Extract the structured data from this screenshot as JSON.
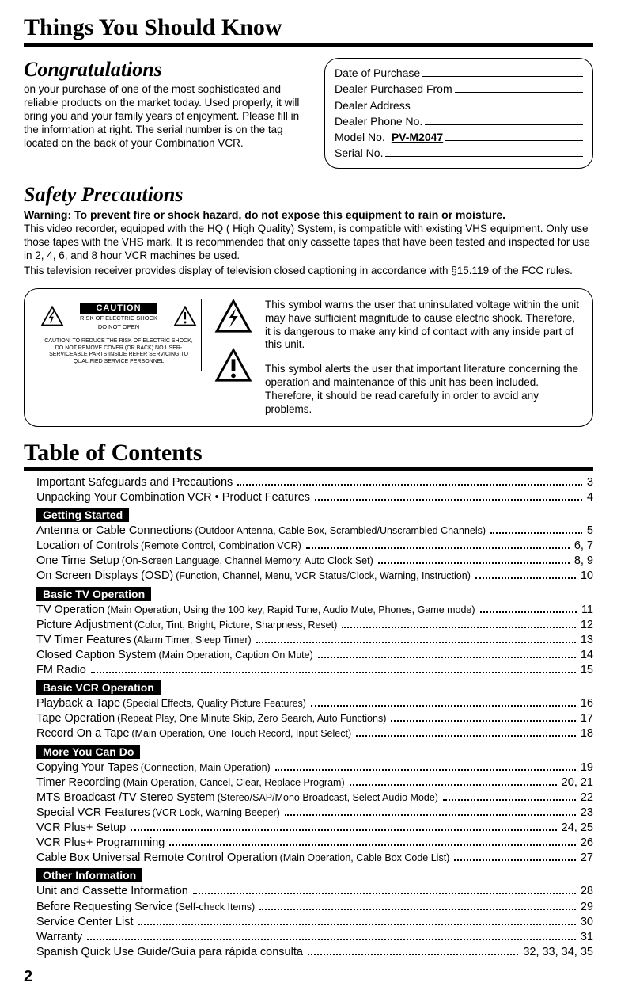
{
  "page": {
    "title": "Things You Should Know",
    "page_number": "2"
  },
  "congrats": {
    "heading": "Congratulations",
    "body": "on your purchase of one of the most sophisticated and reliable products on the market today. Used properly, it will bring you and your family years of enjoyment. Please fill in the information at right. The serial number is on the tag located on the back of your Combination VCR."
  },
  "info_box": {
    "fields": [
      {
        "label": "Date of Purchase",
        "value": ""
      },
      {
        "label": "Dealer Purchased From",
        "value": ""
      },
      {
        "label": "Dealer Address",
        "value": ""
      },
      {
        "label": "Dealer Phone No.",
        "value": ""
      },
      {
        "label": "Model No.",
        "value": "PV-M2047"
      },
      {
        "label": "Serial No.",
        "value": ""
      }
    ]
  },
  "safety": {
    "heading": "Safety Precautions",
    "warning": "Warning: To prevent fire or shock hazard, do not expose this equipment to rain or moisture.",
    "p1": "This video recorder, equipped with the HQ ( High Quality) System, is compatible with existing VHS equipment. Only use those tapes with the VHS mark. It is recommended that only cassette tapes that have been tested and inspected for use in 2, 4, 6, and 8 hour VCR machines be used.",
    "p2": "This television receiver provides display of television closed captioning in accordance with §15.119 of the FCC rules."
  },
  "caution_box": {
    "badge": "CAUTION",
    "sub1": "RISK OF ELECTRIC SHOCK",
    "sub2": "DO NOT OPEN",
    "mid": "CAUTION: TO REDUCE THE RISK OF ELECTRIC SHOCK, DO NOT REMOVE COVER (OR BACK) NO USER-SERVICEABLE PARTS INSIDE REFER SERVICING TO QUALIFIED SERVICE PERSONNEL"
  },
  "symbols": {
    "bolt": "This symbol warns the user that uninsulated voltage within the unit may have sufficient magnitude to cause electric shock. Therefore, it is dangerous to make any kind of contact with any inside part of this unit.",
    "excl": "This symbol alerts the user that important literature concerning the operation and maintenance of this unit has been included. Therefore, it should be read carefully in order to avoid any problems."
  },
  "toc": {
    "heading": "Table of Contents",
    "top": [
      {
        "title": "Important Safeguards and Precautions",
        "sub": "",
        "page": "3"
      },
      {
        "title": "Unpacking Your Combination VCR • Product Features",
        "sub": "",
        "page": "4"
      }
    ],
    "sections": [
      {
        "name": "Getting Started",
        "items": [
          {
            "title": "Antenna or Cable Connections",
            "sub": "(Outdoor Antenna, Cable Box, Scrambled/Unscrambled Channels)",
            "page": "5"
          },
          {
            "title": "Location of Controls",
            "sub": "(Remote Control, Combination VCR)",
            "page": "6, 7"
          },
          {
            "title": "One Time Setup",
            "sub": "(On-Screen Language, Channel Memory, Auto Clock Set)",
            "page": "8, 9"
          },
          {
            "title": "On Screen Displays (OSD)",
            "sub": "(Function, Channel, Menu, VCR Status/Clock, Warning, Instruction)",
            "page": "10"
          }
        ]
      },
      {
        "name": "Basic TV Operation",
        "items": [
          {
            "title": "TV Operation",
            "sub": "(Main Operation, Using the 100 key, Rapid Tune, Audio Mute, Phones, Game mode)",
            "page": "11"
          },
          {
            "title": "Picture Adjustment",
            "sub": "(Color, Tint, Bright, Picture, Sharpness, Reset)",
            "page": "12"
          },
          {
            "title": "TV Timer Features",
            "sub": "(Alarm Timer, Sleep Timer)",
            "page": "13"
          },
          {
            "title": "Closed Caption System",
            "sub": "(Main Operation, Caption On Mute)",
            "page": "14"
          },
          {
            "title": "FM Radio",
            "sub": "",
            "page": "15"
          }
        ]
      },
      {
        "name": "Basic VCR Operation",
        "items": [
          {
            "title": "Playback a Tape",
            "sub": "(Special Effects, Quality Picture Features)",
            "page": "16"
          },
          {
            "title": "Tape Operation",
            "sub": "(Repeat Play, One Minute Skip, Zero Search, Auto Functions)",
            "page": "17"
          },
          {
            "title": "Record On a Tape",
            "sub": "(Main Operation, One Touch Record, Input Select)",
            "page": "18"
          }
        ]
      },
      {
        "name": "More You Can Do",
        "items": [
          {
            "title": "Copying Your Tapes",
            "sub": "(Connection, Main Operation)",
            "page": "19"
          },
          {
            "title": "Timer Recording",
            "sub": "(Main Operation, Cancel, Clear, Replace Program)",
            "page": "20, 21"
          },
          {
            "title": "MTS Broadcast /TV Stereo System",
            "sub": "(Stereo/SAP/Mono Broadcast, Select Audio Mode)",
            "page": "22"
          },
          {
            "title": "Special VCR Features",
            "sub": "(VCR Lock, Warning Beeper)",
            "page": "23"
          },
          {
            "title": "VCR Plus+ Setup",
            "sub": "",
            "page": "24, 25"
          },
          {
            "title": "VCR Plus+ Programming",
            "sub": "",
            "page": "26"
          },
          {
            "title": "Cable Box Universal Remote Control Operation",
            "sub": "(Main Operation, Cable Box Code List)",
            "page": "27"
          }
        ]
      },
      {
        "name": "Other Information",
        "items": [
          {
            "title": "Unit and Cassette Information",
            "sub": "",
            "page": "28"
          },
          {
            "title": "Before Requesting Service",
            "sub": "(Self-check Items)",
            "page": "29"
          },
          {
            "title": "Service Center List",
            "sub": "",
            "page": "30"
          },
          {
            "title": "Warranty",
            "sub": "",
            "page": "31"
          },
          {
            "title": "Spanish Quick Use Guide/Guía para rápida consulta",
            "sub": "",
            "page": "32, 33, 34, 35"
          }
        ]
      }
    ]
  },
  "colors": {
    "text": "#000000",
    "bg": "#ffffff",
    "rule": "#000000",
    "section_bg": "#000000",
    "section_fg": "#ffffff"
  }
}
